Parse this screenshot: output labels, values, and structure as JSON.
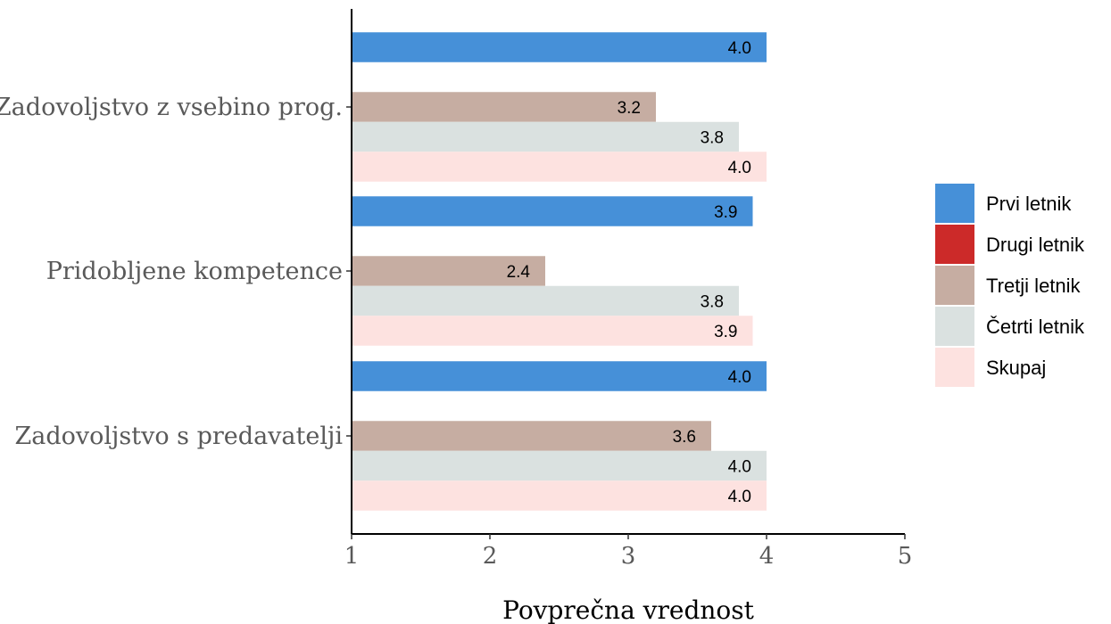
{
  "chart_data": {
    "type": "bar",
    "orientation": "horizontal",
    "categories": [
      "Zadovoljstvo z vsebino prog.",
      "Pridobljene kompetence",
      "Zadovoljstvo s predavatelji"
    ],
    "series": [
      {
        "name": "Prvi letnik",
        "color": "#4690D8",
        "values": [
          4.0,
          3.9,
          4.0
        ]
      },
      {
        "name": "Drugi letnik",
        "color": "#CC2A29",
        "values": [
          null,
          null,
          null
        ]
      },
      {
        "name": "Tretji letnik",
        "color": "#C6ADA2",
        "values": [
          3.2,
          2.4,
          3.6
        ]
      },
      {
        "name": "Četrti letnik",
        "color": "#DAE1E0",
        "values": [
          3.8,
          3.8,
          4.0
        ]
      },
      {
        "name": "Skupaj",
        "color": "#FDE2E0",
        "values": [
          4.0,
          3.9,
          4.0
        ]
      }
    ],
    "data_labels": [
      [
        "4.0",
        "3.9",
        "4.0"
      ],
      [
        "",
        "",
        ""
      ],
      [
        "3.2",
        "2.4",
        "3.6"
      ],
      [
        "3.8",
        "3.8",
        "4.0"
      ],
      [
        "4.0",
        "3.9",
        "4.0"
      ]
    ],
    "xlabel": "Povprečna vrednost",
    "ylabel": "",
    "xlim": [
      1,
      5
    ],
    "xticks": [
      "1",
      "2",
      "3",
      "4",
      "5"
    ],
    "grid": false,
    "legend_position": "right"
  }
}
